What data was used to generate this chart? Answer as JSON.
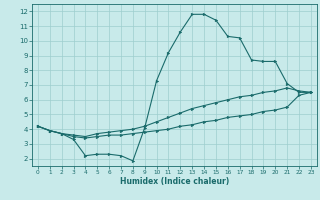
{
  "xlabel": "Humidex (Indice chaleur)",
  "bg_color": "#c8eaea",
  "grid_color": "#9ecece",
  "line_color": "#1a6b6b",
  "xlim": [
    -0.5,
    23.5
  ],
  "ylim": [
    1.5,
    12.5
  ],
  "xticks": [
    0,
    1,
    2,
    3,
    4,
    5,
    6,
    7,
    8,
    9,
    10,
    11,
    12,
    13,
    14,
    15,
    16,
    17,
    18,
    19,
    20,
    21,
    22,
    23
  ],
  "yticks": [
    2,
    3,
    4,
    5,
    6,
    7,
    8,
    9,
    10,
    11,
    12
  ],
  "curve1_x": [
    0,
    1,
    2,
    3,
    4,
    5,
    6,
    7,
    8,
    9,
    10,
    11,
    12,
    13,
    14,
    15,
    16,
    17,
    18,
    19,
    20,
    21,
    22,
    23
  ],
  "curve1_y": [
    4.2,
    3.9,
    3.7,
    3.3,
    2.2,
    2.3,
    2.3,
    2.2,
    1.85,
    4.1,
    7.3,
    9.2,
    10.6,
    11.8,
    11.8,
    11.4,
    10.3,
    10.2,
    8.7,
    8.6,
    8.6,
    7.1,
    6.5,
    6.5
  ],
  "curve2_x": [
    0,
    1,
    2,
    3,
    4,
    5,
    6,
    7,
    8,
    9,
    10,
    11,
    12,
    13,
    14,
    15,
    16,
    17,
    18,
    19,
    20,
    21,
    22,
    23
  ],
  "curve2_y": [
    4.2,
    3.9,
    3.7,
    3.6,
    3.5,
    3.7,
    3.8,
    3.9,
    4.0,
    4.2,
    4.5,
    4.8,
    5.1,
    5.4,
    5.6,
    5.8,
    6.0,
    6.2,
    6.3,
    6.5,
    6.6,
    6.8,
    6.6,
    6.5
  ],
  "curve3_x": [
    0,
    1,
    2,
    3,
    4,
    5,
    6,
    7,
    8,
    9,
    10,
    11,
    12,
    13,
    14,
    15,
    16,
    17,
    18,
    19,
    20,
    21,
    22,
    23
  ],
  "curve3_y": [
    4.2,
    3.9,
    3.7,
    3.5,
    3.4,
    3.5,
    3.6,
    3.6,
    3.7,
    3.8,
    3.9,
    4.0,
    4.2,
    4.3,
    4.5,
    4.6,
    4.8,
    4.9,
    5.0,
    5.2,
    5.3,
    5.5,
    6.3,
    6.5
  ]
}
